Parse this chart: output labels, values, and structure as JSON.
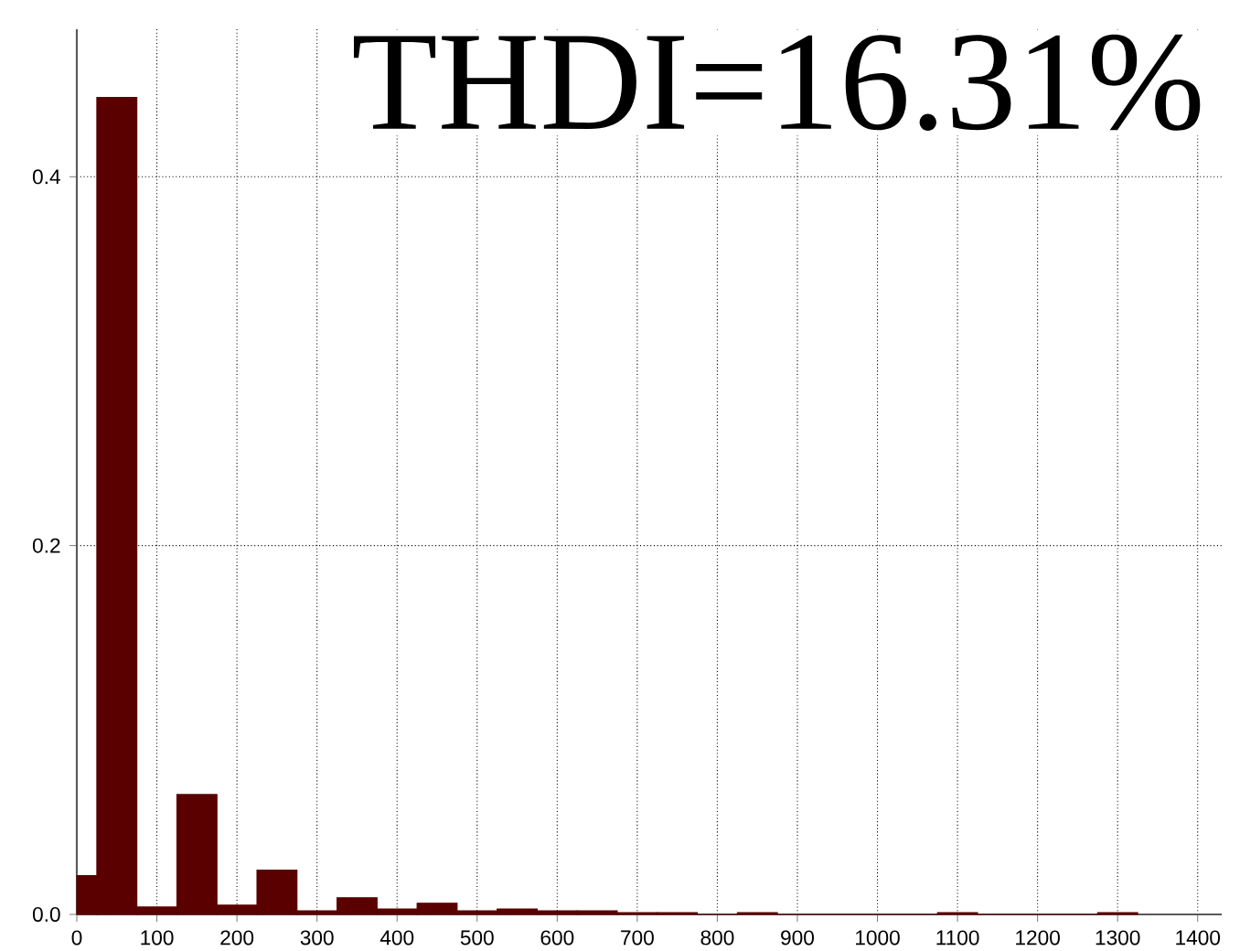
{
  "chart_data": {
    "type": "histogram",
    "annotations": [
      "THDI=16.31%"
    ],
    "bins": [
      0,
      25,
      75,
      125,
      175,
      225,
      275,
      325,
      375,
      425,
      475,
      525,
      575,
      625,
      675,
      725,
      775,
      825,
      875,
      925,
      975,
      1025,
      1075,
      1125,
      1175,
      1225,
      1275,
      1325
    ],
    "values": [
      0.021,
      0.443,
      0.004,
      0.065,
      0.005,
      0.024,
      0.002,
      0.009,
      0.003,
      0.006,
      0.002,
      0.003,
      0.002,
      0.002,
      0.001,
      0.001,
      0,
      0.001,
      0,
      0,
      0,
      0,
      0.001,
      0,
      0,
      0,
      0.001
    ],
    "color": "#5a0000",
    "xlim": [
      0,
      1430
    ],
    "ylim": [
      0,
      0.48
    ],
    "xticks": [
      0,
      100,
      200,
      300,
      400,
      500,
      600,
      700,
      800,
      900,
      1000,
      1100,
      1200,
      1300,
      1400
    ],
    "yticks": [
      {
        "value": 0,
        "label": "0.0"
      },
      {
        "value": 0.2,
        "label": "0.2"
      },
      {
        "value": 0.4,
        "label": "0.4"
      }
    ],
    "grid": true
  }
}
